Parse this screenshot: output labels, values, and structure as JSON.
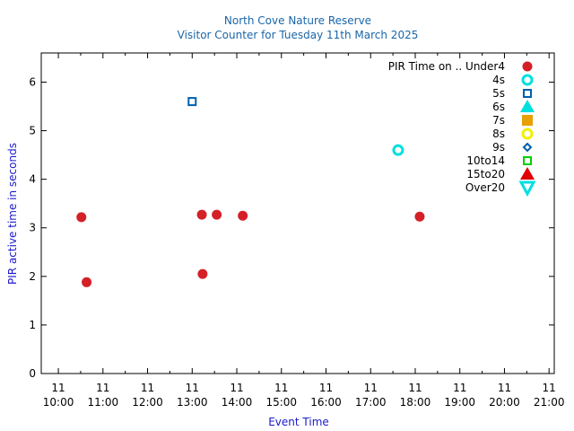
{
  "chart_data": {
    "type": "scatter",
    "title": "North Cove Nature Reserve",
    "subtitle": "Visitor Counter for Tuesday 11th March 2025",
    "xlabel": "Event Time",
    "ylabel": "PIR active time in seconds",
    "xlim": [
      "10:00",
      "21:00"
    ],
    "ylim": [
      0,
      6.6
    ],
    "x_ticks": [
      {
        "day": "11",
        "time": "10:00"
      },
      {
        "day": "11",
        "time": "11:00"
      },
      {
        "day": "11",
        "time": "12:00"
      },
      {
        "day": "11",
        "time": "13:00"
      },
      {
        "day": "11",
        "time": "14:00"
      },
      {
        "day": "11",
        "time": "15:00"
      },
      {
        "day": "11",
        "time": "16:00"
      },
      {
        "day": "11",
        "time": "17:00"
      },
      {
        "day": "11",
        "time": "18:00"
      },
      {
        "day": "11",
        "time": "19:00"
      },
      {
        "day": "11",
        "time": "20:00"
      },
      {
        "day": "11",
        "time": "21:00"
      }
    ],
    "y_ticks": [
      "0",
      "1",
      "2",
      "3",
      "4",
      "5",
      "6"
    ],
    "y_tick_values": [
      0,
      1,
      2,
      3,
      4,
      5,
      6
    ],
    "legend_title": "PIR Time on ..",
    "legend_position": "top-right",
    "series": [
      {
        "name": "Under4",
        "marker": "filled-circle",
        "color": "#d42027",
        "points": [
          {
            "x": "10:31",
            "y": 3.22
          },
          {
            "x": "10:38",
            "y": 1.88
          },
          {
            "x": "13:13",
            "y": 3.27
          },
          {
            "x": "13:14",
            "y": 2.05
          },
          {
            "x": "13:33",
            "y": 3.27
          },
          {
            "x": "14:08",
            "y": 3.25
          },
          {
            "x": "18:06",
            "y": 3.23
          }
        ]
      },
      {
        "name": "4s",
        "marker": "open-circle",
        "color": "#00e0e0",
        "points": [
          {
            "x": "17:37",
            "y": 4.6
          }
        ]
      },
      {
        "name": "5s",
        "marker": "open-square",
        "color": "#0060b0",
        "points": [
          {
            "x": "13:00",
            "y": 5.6
          }
        ]
      },
      {
        "name": "6s",
        "marker": "filled-triangle",
        "color": "#00e0e0",
        "points": []
      },
      {
        "name": "7s",
        "marker": "filled-square",
        "color": "#e6a000",
        "points": []
      },
      {
        "name": "8s",
        "marker": "open-circle",
        "color": "#f0f000",
        "points": []
      },
      {
        "name": "9s",
        "marker": "open-diamond",
        "color": "#0060b0",
        "points": []
      },
      {
        "name": "10to14",
        "marker": "open-square",
        "color": "#00d000",
        "points": []
      },
      {
        "name": "15to20",
        "marker": "filled-triangle",
        "color": "#e00000",
        "points": []
      },
      {
        "name": "Over20",
        "marker": "open-triangle-down",
        "color": "#00e0e0",
        "points": []
      }
    ]
  }
}
